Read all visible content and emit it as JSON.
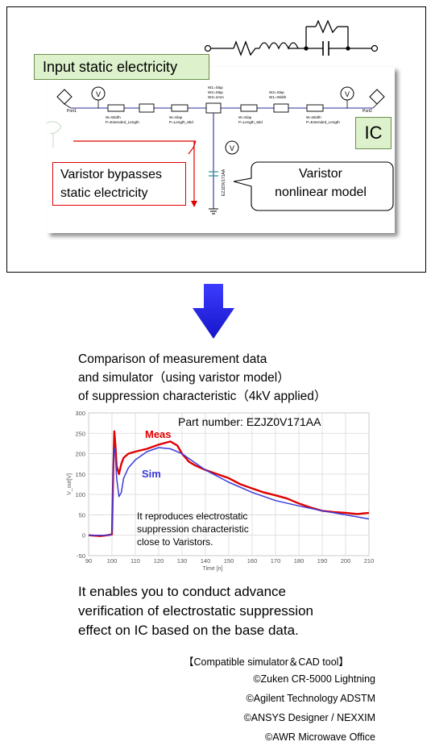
{
  "schematic": {
    "input_label": "Input static electricity",
    "ic_label": "IC",
    "bypass_note": [
      "Varistor bypasses",
      "static electricity"
    ],
    "model_note": [
      "Varistor",
      "nonlinear model"
    ],
    "port_left": "Port1",
    "port_right": "Port2",
    "voltmeter": "V",
    "element_left_line": "W=Width",
    "element_left_line2": "P=Extended_Length",
    "element_mid_line": "W=Slap",
    "element_mid_line2": "P=Length_Mid",
    "element_stack_line1": "W1=Slap",
    "element_stack_line2": "W2=Slap",
    "element_stack_line3": "W3=1mm",
    "element_right_stack_line1": "W2=Slap",
    "element_right_stack_line2": "W1=Width",
    "varistor_part": "EZJZ0V171AA",
    "accent_red": "#e00000",
    "accent_green": "#ddf2cc"
  },
  "arrow": {
    "color": "#2b2be0"
  },
  "comparison": {
    "title_lines": [
      "Comparison of measurement data",
      "and simulator（using varistor model）",
      "of suppression characteristic（4kV applied）"
    ]
  },
  "chart_data": {
    "type": "line",
    "title": "",
    "part_number": "Part number: EZJZ0V171AA",
    "xlabel": "Time [n]",
    "ylabel": "V_out[V]",
    "xlim": [
      90,
      210
    ],
    "ylim": [
      -50,
      300
    ],
    "xticks": [
      90,
      100,
      110,
      120,
      130,
      140,
      150,
      160,
      170,
      180,
      190,
      200,
      210
    ],
    "yticks": [
      -50,
      0,
      50,
      100,
      150,
      200,
      250,
      300
    ],
    "grid": true,
    "annotation": [
      "It reproduces electrostatic",
      "suppression characteristic",
      "close to Varistors."
    ],
    "series": [
      {
        "name": "Meas",
        "color": "#e00000",
        "x": [
          90,
          95,
          98,
          100,
          100.5,
          101,
          101.5,
          102,
          103,
          104,
          105,
          107,
          110,
          115,
          120,
          125,
          128,
          130,
          133,
          136,
          140,
          145,
          150,
          155,
          160,
          165,
          170,
          175,
          180,
          185,
          190,
          195,
          200,
          205,
          210
        ],
        "y": [
          0,
          -2,
          0,
          2,
          150,
          255,
          220,
          170,
          150,
          175,
          190,
          200,
          205,
          212,
          222,
          230,
          220,
          200,
          180,
          170,
          160,
          150,
          140,
          125,
          115,
          105,
          98,
          90,
          78,
          68,
          60,
          57,
          55,
          52,
          55
        ]
      },
      {
        "name": "Sim",
        "color": "#3b3bdc",
        "x": [
          90,
          95,
          99,
          100,
          100.7,
          101.3,
          102,
          103,
          104,
          105,
          107,
          110,
          115,
          120,
          125,
          130,
          135,
          140,
          150,
          160,
          170,
          180,
          190,
          200,
          210
        ],
        "y": [
          0,
          0,
          0,
          5,
          200,
          215,
          140,
          95,
          105,
          140,
          165,
          185,
          205,
          215,
          212,
          200,
          180,
          160,
          130,
          105,
          85,
          72,
          60,
          50,
          40
        ]
      }
    ]
  },
  "conclusion": {
    "lines": [
      "It enables you to conduct advance",
      "verification of electrostatic suppression",
      "effect on IC based on the base data."
    ]
  },
  "tools": {
    "heading": "【Compatible simulator＆CAD tool】",
    "items": [
      "©Zuken CR-5000 Lightning",
      "©Agilent Technology ADSTM",
      "©ANSYS Designer / NEXXIM",
      "©AWR Microwave Office"
    ]
  }
}
